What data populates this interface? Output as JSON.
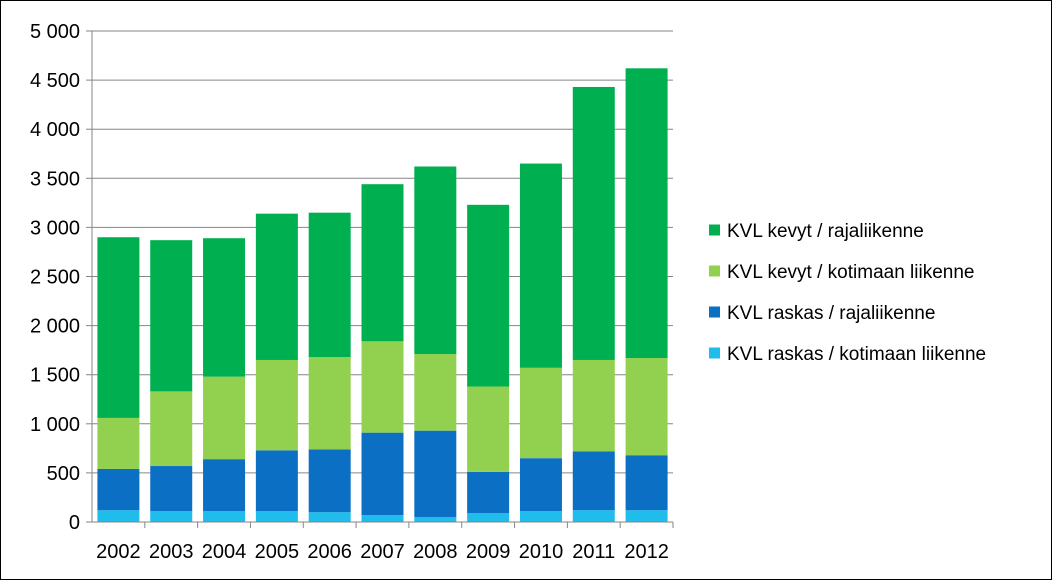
{
  "chart_data": {
    "type": "bar",
    "stacked": true,
    "categories": [
      "2002",
      "2003",
      "2004",
      "2005",
      "2006",
      "2007",
      "2008",
      "2009",
      "2010",
      "2011",
      "2012"
    ],
    "series": [
      {
        "name": "KVL raskas / kotimaan liikenne",
        "color": "#1fbcec",
        "values": [
          120,
          110,
          110,
          110,
          100,
          70,
          50,
          90,
          110,
          120,
          120
        ]
      },
      {
        "name": "KVL raskas / rajaliikenne",
        "color": "#0b6fc4",
        "values": [
          420,
          460,
          530,
          620,
          640,
          840,
          880,
          420,
          540,
          600,
          560
        ]
      },
      {
        "name": "KVL kevyt / kotimaan liikenne",
        "color": "#92d050",
        "values": [
          520,
          760,
          840,
          920,
          940,
          930,
          780,
          870,
          920,
          930,
          990
        ]
      },
      {
        "name": "KVL kevyt / rajaliikenne",
        "color": "#00b050",
        "values": [
          1840,
          1540,
          1410,
          1490,
          1470,
          1600,
          1910,
          1850,
          2080,
          2780,
          2950
        ]
      }
    ],
    "legend_order": [
      3,
      2,
      1,
      0
    ],
    "yticks": [
      "0",
      "500",
      "1 000",
      "1 500",
      "2 000",
      "2 500",
      "3 000",
      "3 500",
      "4 000",
      "4 500",
      "5 000"
    ],
    "ylim": [
      0,
      5000
    ],
    "ystep": 500,
    "grid": true,
    "legend": "right",
    "title": "",
    "xlabel": "",
    "ylabel": ""
  }
}
